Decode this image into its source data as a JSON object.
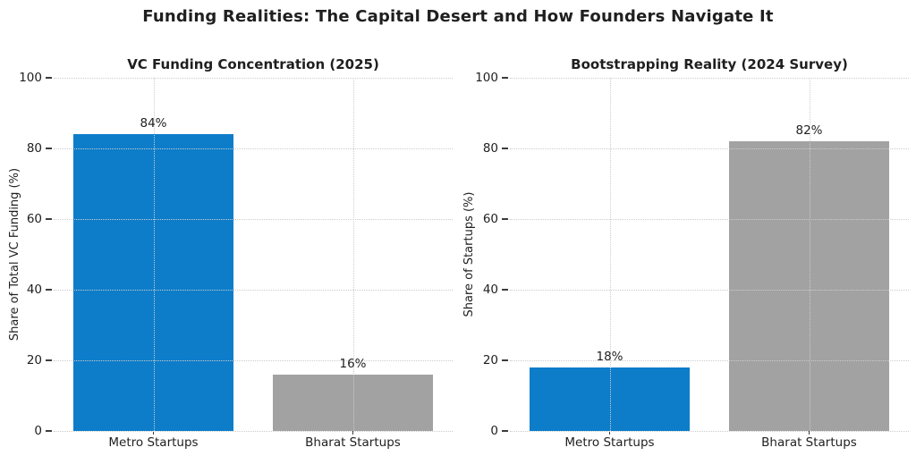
{
  "figure": {
    "title": "Funding Realities: The Capital Desert and How Founders Navigate It",
    "background": "#ffffff"
  },
  "colors": {
    "metro_blue": "#0d7dca",
    "bharat_gray": "#a2a2a2",
    "gridline": "#cccccc",
    "tick": "#3c3c3c",
    "text": "#1f1f1f"
  },
  "chart_data": [
    {
      "type": "bar",
      "title": "VC Funding Concentration (2025)",
      "categories": [
        "Metro Startups",
        "Bharat Startups"
      ],
      "values": [
        84,
        16
      ],
      "value_labels": [
        "84%",
        "16%"
      ],
      "bar_colors": [
        "#0d7dca",
        "#a2a2a2"
      ],
      "xlabel": "",
      "ylabel": "Share of Total VC Funding (%)",
      "ylim": [
        0,
        100
      ],
      "yticks": [
        0,
        20,
        40,
        60,
        80,
        100
      ],
      "bar_width_ratio": 0.8,
      "grid": "dotted both-axes above-bars",
      "legend": "none"
    },
    {
      "type": "bar",
      "title": "Bootstrapping Reality (2024 Survey)",
      "categories": [
        "Metro Startups",
        "Bharat Startups"
      ],
      "values": [
        18,
        82
      ],
      "value_labels": [
        "18%",
        "82%"
      ],
      "bar_colors": [
        "#0d7dca",
        "#a2a2a2"
      ],
      "xlabel": "",
      "ylabel": "Share of Startups (%)",
      "ylim": [
        0,
        100
      ],
      "yticks": [
        0,
        20,
        40,
        60,
        80,
        100
      ],
      "bar_width_ratio": 0.8,
      "grid": "dotted both-axes above-bars",
      "legend": "none"
    }
  ]
}
